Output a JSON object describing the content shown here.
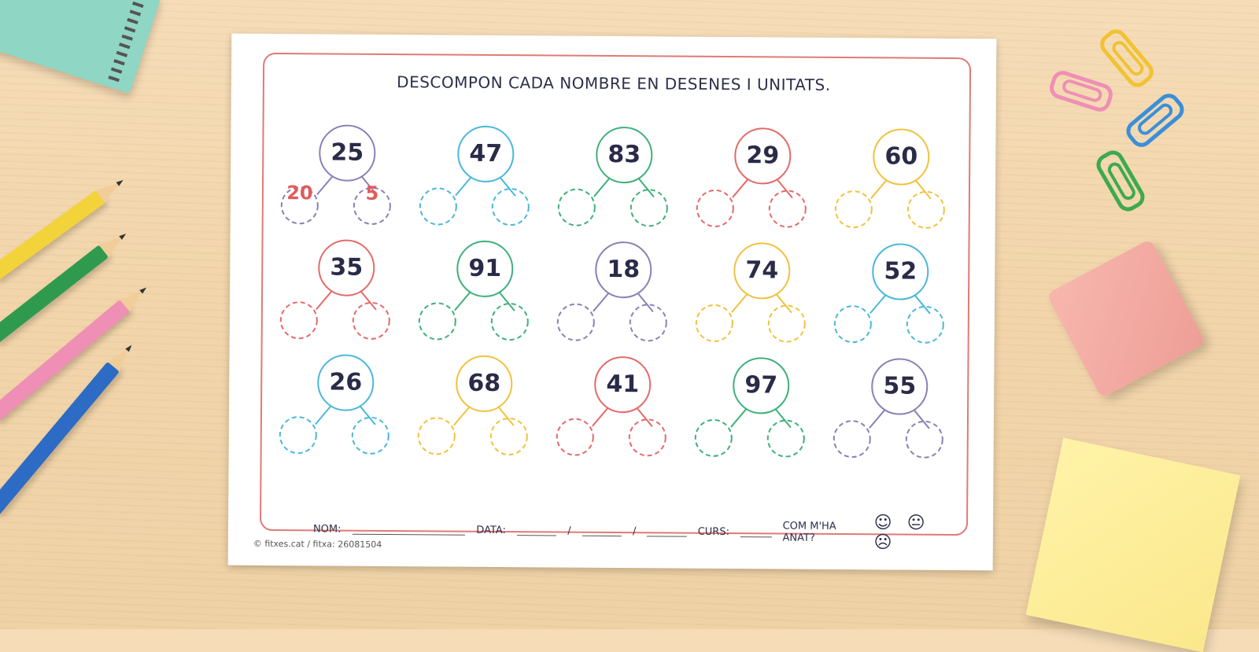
{
  "worksheet": {
    "title": "DESCOMPON CADA NOMBRE EN DESENES I UNITATS.",
    "exercises": [
      {
        "number": "25",
        "color": "#8b80b6",
        "tens": "20",
        "units": "5"
      },
      {
        "number": "47",
        "color": "#4ab8d8",
        "tens": "",
        "units": ""
      },
      {
        "number": "83",
        "color": "#3fb07a",
        "tens": "",
        "units": ""
      },
      {
        "number": "29",
        "color": "#e46a6a",
        "tens": "",
        "units": ""
      },
      {
        "number": "60",
        "color": "#f0c23e",
        "tens": "",
        "units": ""
      },
      {
        "number": "35",
        "color": "#e46a6a",
        "tens": "",
        "units": ""
      },
      {
        "number": "91",
        "color": "#3fb07a",
        "tens": "",
        "units": ""
      },
      {
        "number": "18",
        "color": "#8b80b6",
        "tens": "",
        "units": ""
      },
      {
        "number": "74",
        "color": "#f0c23e",
        "tens": "",
        "units": ""
      },
      {
        "number": "52",
        "color": "#4ab8d8",
        "tens": "",
        "units": ""
      },
      {
        "number": "26",
        "color": "#4ab8d8",
        "tens": "",
        "units": ""
      },
      {
        "number": "68",
        "color": "#f0c23e",
        "tens": "",
        "units": ""
      },
      {
        "number": "41",
        "color": "#e46a6a",
        "tens": "",
        "units": ""
      },
      {
        "number": "97",
        "color": "#3fb07a",
        "tens": "",
        "units": ""
      },
      {
        "number": "55",
        "color": "#8b80b6",
        "tens": "",
        "units": ""
      }
    ],
    "footer": {
      "name_label": "NOM:",
      "date_label": "DATA:",
      "date_sep": "/",
      "course_label": "CURS:",
      "feeling_label": "COM M'HA ANAT?",
      "faces": "☺ 😐 ☹"
    },
    "credit": "© fitxes.cat / fitxa: 26081504"
  }
}
